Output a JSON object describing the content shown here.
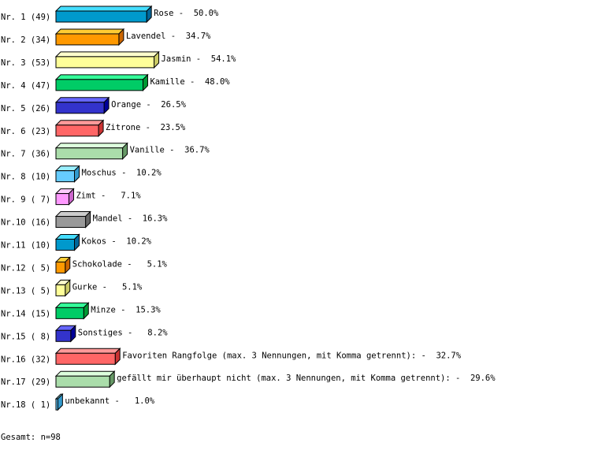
{
  "chart_data": {
    "type": "bar",
    "orientation": "horizontal",
    "style": "3d",
    "categories": [
      "Nr. 1 (49)",
      "Nr. 2 (34)",
      "Nr. 3 (53)",
      "Nr. 4 (47)",
      "Nr. 5 (26)",
      "Nr. 6 (23)",
      "Nr. 7 (36)",
      "Nr. 8 (10)",
      "Nr. 9 ( 7)",
      "Nr.10 (16)",
      "Nr.11 (10)",
      "Nr.12 ( 5)",
      "Nr.13 ( 5)",
      "Nr.14 (15)",
      "Nr.15 ( 8)",
      "Nr.16 (32)",
      "Nr.17 (29)",
      "Nr.18 ( 1)"
    ],
    "bar_labels": [
      "Rose -  50.0%",
      "Lavendel -  34.7%",
      "Jasmin -  54.1%",
      "Kamille -  48.0%",
      "Orange -  26.5%",
      "Zitrone -  23.5%",
      "Vanille -  36.7%",
      "Moschus -  10.2%",
      "Zimt -   7.1%",
      "Mandel -  16.3%",
      "Kokos -  10.2%",
      "Schokolade -   5.1%",
      "Gurke -   5.1%",
      "Minze -  15.3%",
      "Sonstiges -   8.2%",
      "Favoriten Rangfolge (max. 3 Nennungen, mit Komma getrennt): -  32.7%",
      "gefällt mir überhaupt nicht (max. 3 Nennungen, mit Komma getrennt): -  29.6%",
      "unbekannt -   1.0%"
    ],
    "values": [
      49,
      34,
      53,
      47,
      26,
      23,
      36,
      10,
      7,
      16,
      10,
      5,
      5,
      15,
      8,
      32,
      29,
      1
    ],
    "percent": [
      50.0,
      34.7,
      54.1,
      48.0,
      26.5,
      23.5,
      36.7,
      10.2,
      7.1,
      16.3,
      10.2,
      5.1,
      5.1,
      15.3,
      8.2,
      32.7,
      29.6,
      1.0
    ],
    "colors": [
      {
        "front": "#0099cc",
        "top": "#44ddff",
        "side": "#006699"
      },
      {
        "front": "#ff9900",
        "top": "#ffcc33",
        "side": "#cc6600"
      },
      {
        "front": "#ffff99",
        "top": "#ffffcc",
        "side": "#cccc66"
      },
      {
        "front": "#00cc66",
        "top": "#33ff99",
        "side": "#009933"
      },
      {
        "front": "#3333cc",
        "top": "#6666ff",
        "side": "#000099"
      },
      {
        "front": "#ff6666",
        "top": "#ff9999",
        "side": "#cc3333"
      },
      {
        "front": "#aaddaa",
        "top": "#ddffdd",
        "side": "#669966"
      },
      {
        "front": "#66ccff",
        "top": "#99eeff",
        "side": "#3399cc"
      },
      {
        "front": "#ff99ff",
        "top": "#ffccff",
        "side": "#cc66cc"
      },
      {
        "front": "#999999",
        "top": "#cccccc",
        "side": "#666666"
      }
    ],
    "footer": "Gesamt: n=98"
  }
}
